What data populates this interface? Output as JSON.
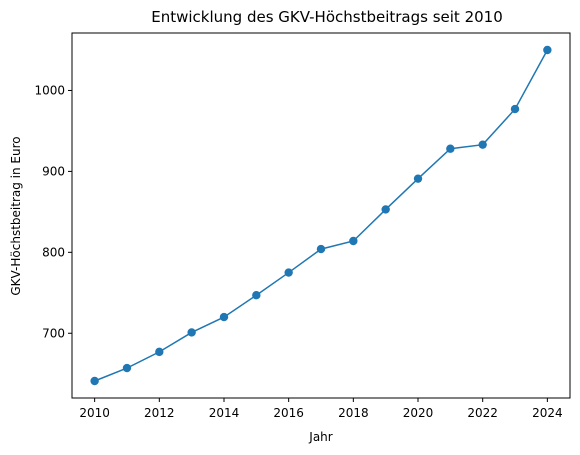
{
  "chart_data": {
    "type": "line",
    "title": "Entwicklung des GKV-Höchstbeitrags seit 2010",
    "xlabel": "Jahr",
    "ylabel": "GKV-Höchstbeitrag in Euro",
    "x": [
      2010,
      2011,
      2012,
      2013,
      2014,
      2015,
      2016,
      2017,
      2018,
      2019,
      2020,
      2021,
      2022,
      2023,
      2024
    ],
    "series": [
      {
        "values": [
          641,
          657,
          677,
          701,
          720,
          747,
          775,
          804,
          814,
          853,
          891,
          928,
          933,
          977,
          1050
        ],
        "color": "#1f77b4"
      }
    ],
    "xlim": [
      2009.3,
      2024.7
    ],
    "ylim": [
      620,
      1071
    ],
    "xticks": [
      2010,
      2012,
      2014,
      2016,
      2018,
      2020,
      2022,
      2024
    ],
    "yticks": [
      700,
      800,
      900,
      1000
    ],
    "grid": false,
    "markers": true
  }
}
